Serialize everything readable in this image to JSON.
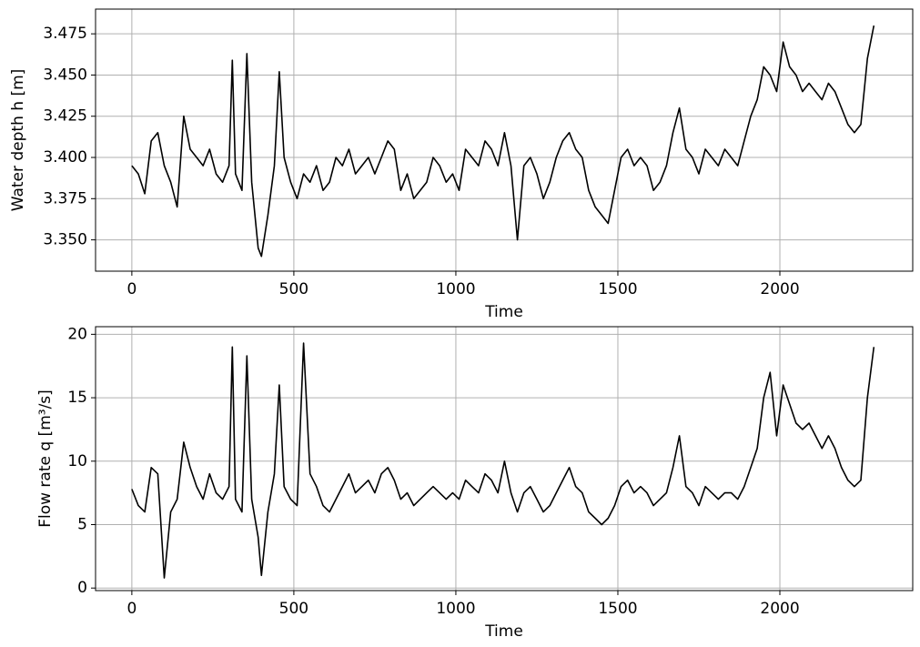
{
  "chart_data": [
    {
      "type": "line",
      "xlabel": "Time",
      "ylabel": "Water depth h [m]",
      "x": [
        0,
        20,
        40,
        60,
        80,
        100,
        120,
        140,
        160,
        180,
        200,
        220,
        240,
        260,
        280,
        300,
        310,
        320,
        340,
        355,
        370,
        390,
        400,
        420,
        440,
        455,
        470,
        490,
        510,
        530,
        550,
        570,
        590,
        610,
        630,
        650,
        670,
        690,
        710,
        730,
        750,
        770,
        790,
        810,
        830,
        850,
        870,
        890,
        910,
        930,
        950,
        970,
        990,
        1010,
        1030,
        1050,
        1070,
        1090,
        1110,
        1130,
        1150,
        1170,
        1190,
        1210,
        1230,
        1250,
        1270,
        1290,
        1310,
        1330,
        1350,
        1370,
        1390,
        1410,
        1430,
        1450,
        1470,
        1490,
        1510,
        1530,
        1550,
        1570,
        1590,
        1610,
        1630,
        1650,
        1670,
        1690,
        1710,
        1730,
        1750,
        1770,
        1790,
        1810,
        1830,
        1850,
        1870,
        1890,
        1910,
        1930,
        1950,
        1970,
        1990,
        2010,
        2030,
        2050,
        2070,
        2090,
        2110,
        2130,
        2150,
        2170,
        2190,
        2210,
        2230,
        2250,
        2270,
        2290
      ],
      "color": "#000000",
      "values": [
        3.395,
        3.39,
        3.378,
        3.41,
        3.415,
        3.395,
        3.385,
        3.37,
        3.425,
        3.405,
        3.4,
        3.395,
        3.405,
        3.39,
        3.385,
        3.395,
        3.459,
        3.39,
        3.38,
        3.463,
        3.385,
        3.345,
        3.34,
        3.365,
        3.395,
        3.452,
        3.4,
        3.385,
        3.375,
        3.39,
        3.385,
        3.395,
        3.38,
        3.385,
        3.4,
        3.395,
        3.405,
        3.39,
        3.395,
        3.4,
        3.39,
        3.4,
        3.41,
        3.405,
        3.38,
        3.39,
        3.375,
        3.38,
        3.385,
        3.4,
        3.395,
        3.385,
        3.39,
        3.38,
        3.405,
        3.4,
        3.395,
        3.41,
        3.405,
        3.395,
        3.415,
        3.395,
        3.35,
        3.395,
        3.4,
        3.39,
        3.375,
        3.385,
        3.4,
        3.41,
        3.415,
        3.405,
        3.4,
        3.38,
        3.37,
        3.365,
        3.36,
        3.38,
        3.4,
        3.405,
        3.395,
        3.4,
        3.395,
        3.38,
        3.385,
        3.395,
        3.415,
        3.43,
        3.405,
        3.4,
        3.39,
        3.405,
        3.4,
        3.395,
        3.405,
        3.4,
        3.395,
        3.41,
        3.425,
        3.435,
        3.455,
        3.45,
        3.44,
        3.47,
        3.455,
        3.45,
        3.44,
        3.445,
        3.44,
        3.435,
        3.445,
        3.44,
        3.43,
        3.42,
        3.415,
        3.42,
        3.46,
        3.48
      ],
      "xlim": [
        -112,
        2410
      ],
      "xticks": [
        0,
        500,
        1000,
        1500,
        2000
      ],
      "ylim": [
        3.331,
        3.49
      ],
      "yticks": [
        {
          "value": 3.35,
          "label": "3.350"
        },
        3.375,
        {
          "value": 3.4,
          "label": "3.400"
        },
        3.425,
        {
          "value": 3.45,
          "label": "3.450"
        },
        3.475
      ],
      "grid": true
    },
    {
      "type": "line",
      "xlabel": "Time",
      "ylabel": "Flow rate q [m³/s]",
      "x": [
        0,
        20,
        40,
        60,
        80,
        100,
        120,
        140,
        160,
        180,
        200,
        220,
        240,
        260,
        280,
        300,
        310,
        320,
        340,
        355,
        370,
        390,
        400,
        420,
        440,
        455,
        470,
        490,
        510,
        530,
        550,
        570,
        590,
        610,
        630,
        650,
        670,
        690,
        710,
        730,
        750,
        770,
        790,
        810,
        830,
        850,
        870,
        890,
        910,
        930,
        950,
        970,
        990,
        1010,
        1030,
        1050,
        1070,
        1090,
        1110,
        1130,
        1150,
        1170,
        1190,
        1210,
        1230,
        1250,
        1270,
        1290,
        1310,
        1330,
        1350,
        1370,
        1390,
        1410,
        1430,
        1450,
        1470,
        1490,
        1510,
        1530,
        1550,
        1570,
        1590,
        1610,
        1630,
        1650,
        1670,
        1690,
        1710,
        1730,
        1750,
        1770,
        1790,
        1810,
        1830,
        1850,
        1870,
        1890,
        1910,
        1930,
        1950,
        1970,
        1990,
        2010,
        2030,
        2050,
        2070,
        2090,
        2110,
        2130,
        2150,
        2170,
        2190,
        2210,
        2230,
        2250,
        2270,
        2290
      ],
      "color": "#000000",
      "values": [
        7.8,
        6.5,
        6.0,
        9.5,
        9.0,
        0.8,
        6.0,
        7.0,
        11.5,
        9.5,
        8.0,
        7.0,
        9.0,
        7.5,
        7.0,
        8.0,
        19.0,
        7.0,
        6.0,
        18.3,
        7.0,
        4.0,
        1.0,
        6.0,
        9.0,
        16.0,
        8.0,
        7.0,
        6.5,
        19.3,
        9.0,
        8.0,
        6.5,
        6.0,
        7.0,
        8.0,
        9.0,
        7.5,
        8.0,
        8.5,
        7.5,
        9.0,
        9.5,
        8.5,
        7.0,
        7.5,
        6.5,
        7.0,
        7.5,
        8.0,
        7.5,
        7.0,
        7.5,
        7.0,
        8.5,
        8.0,
        7.5,
        9.0,
        8.5,
        7.5,
        10.0,
        7.5,
        6.0,
        7.5,
        8.0,
        7.0,
        6.0,
        6.5,
        7.5,
        8.5,
        9.5,
        8.0,
        7.5,
        6.0,
        5.5,
        5.0,
        5.5,
        6.5,
        8.0,
        8.5,
        7.5,
        8.0,
        7.5,
        6.5,
        7.0,
        7.5,
        9.5,
        12.0,
        8.0,
        7.5,
        6.5,
        8.0,
        7.5,
        7.0,
        7.5,
        7.5,
        7.0,
        8.0,
        9.5,
        11.0,
        15.0,
        17.0,
        12.0,
        16.0,
        14.5,
        13.0,
        12.5,
        13.0,
        12.0,
        11.0,
        12.0,
        11.0,
        9.5,
        8.5,
        8.0,
        8.5,
        15.0,
        19.0
      ],
      "xlim": [
        -112,
        2410
      ],
      "xticks": [
        0,
        500,
        1000,
        1500,
        2000
      ],
      "ylim": [
        -0.2,
        20.6
      ],
      "yticks": [
        0,
        5,
        10,
        15,
        20
      ],
      "grid": true
    }
  ]
}
